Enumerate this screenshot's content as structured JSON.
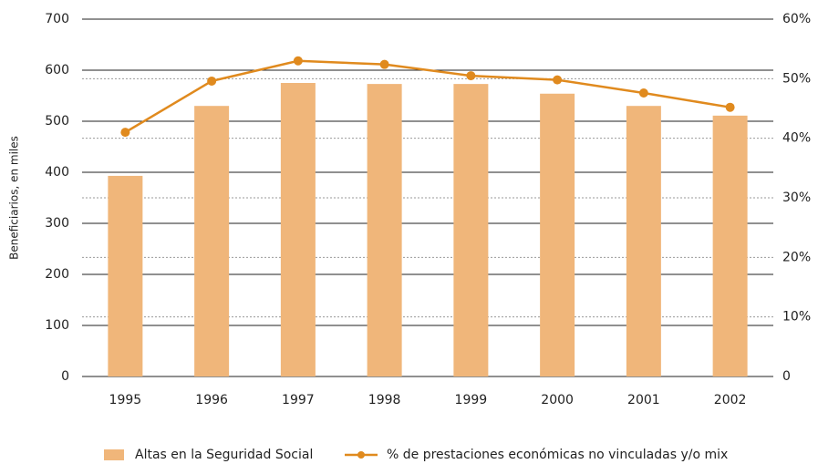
{
  "chart_data": {
    "type": "bar_line",
    "y_label": "Beneficiarios, en miles",
    "categories": [
      "1995",
      "1996",
      "1997",
      "1998",
      "1999",
      "2000",
      "2001",
      "2002"
    ],
    "series": [
      {
        "name": "Altas en la Seguridad Social",
        "type": "bar",
        "color": "#f0b67a",
        "values": [
          393,
          530,
          575,
          573,
          573,
          554,
          530,
          511
        ]
      },
      {
        "name": "% de prestaciones económicas no vinculadas y/o mix",
        "type": "line",
        "axis": "y2",
        "color": "#e08a1e",
        "values": [
          41,
          49.6,
          53,
          52.4,
          50.5,
          49.8,
          47.6,
          45.2
        ]
      }
    ],
    "ylim": [
      0,
      700
    ],
    "yticks": [
      0,
      100,
      200,
      300,
      400,
      500,
      600,
      700
    ],
    "y2lim": [
      0,
      60
    ],
    "y2ticks": [
      {
        "value": 0,
        "label": "0"
      },
      {
        "value": 10,
        "label": "10%"
      },
      {
        "value": 20,
        "label": "20%"
      },
      {
        "value": 30,
        "label": "30%"
      },
      {
        "value": 40,
        "label": "40%"
      },
      {
        "value": 50,
        "label": "50%"
      },
      {
        "value": 60,
        "label": "60%"
      }
    ],
    "grid": true,
    "legend": "bottom"
  }
}
